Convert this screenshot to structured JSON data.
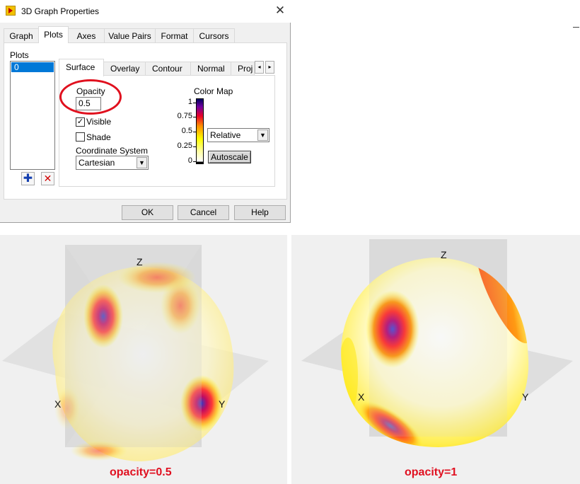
{
  "dialog": {
    "title": "3D Graph Properties",
    "main_tabs": [
      "Graph",
      "Plots",
      "Axes",
      "Value Pairs",
      "Format",
      "Cursors"
    ],
    "active_main_tab": "Plots",
    "plots_label": "Plots",
    "plots_list": [
      "0"
    ],
    "sub_tabs": [
      "Surface",
      "Overlay",
      "Contour",
      "Normal",
      "Proj"
    ],
    "active_sub_tab": "Surface",
    "opacity_label": "Opacity",
    "opacity_value": "0.5",
    "visible_label": "Visible",
    "visible_checked": true,
    "shade_label": "Shade",
    "shade_checked": false,
    "coord_label": "Coordinate System",
    "coord_value": "Cartesian",
    "color_map_label": "Color Map",
    "color_map_ticks": [
      "1",
      "0.75",
      "0.5",
      "0.25",
      "0"
    ],
    "color_mode": "Relative",
    "autoscale_label": "Autoscale",
    "buttons": {
      "ok": "OK",
      "cancel": "Cancel",
      "help": "Help"
    },
    "highlight_color": "#e0101e"
  },
  "panels": [
    {
      "x_label": "X",
      "y_label": "Y",
      "z_label": "Z",
      "caption": "opacity=0.5"
    },
    {
      "x_label": "X",
      "y_label": "Y",
      "z_label": "Z",
      "caption": "opacity=1"
    }
  ],
  "colors": {
    "accent": "#0078d7",
    "caption": "#e01020"
  }
}
